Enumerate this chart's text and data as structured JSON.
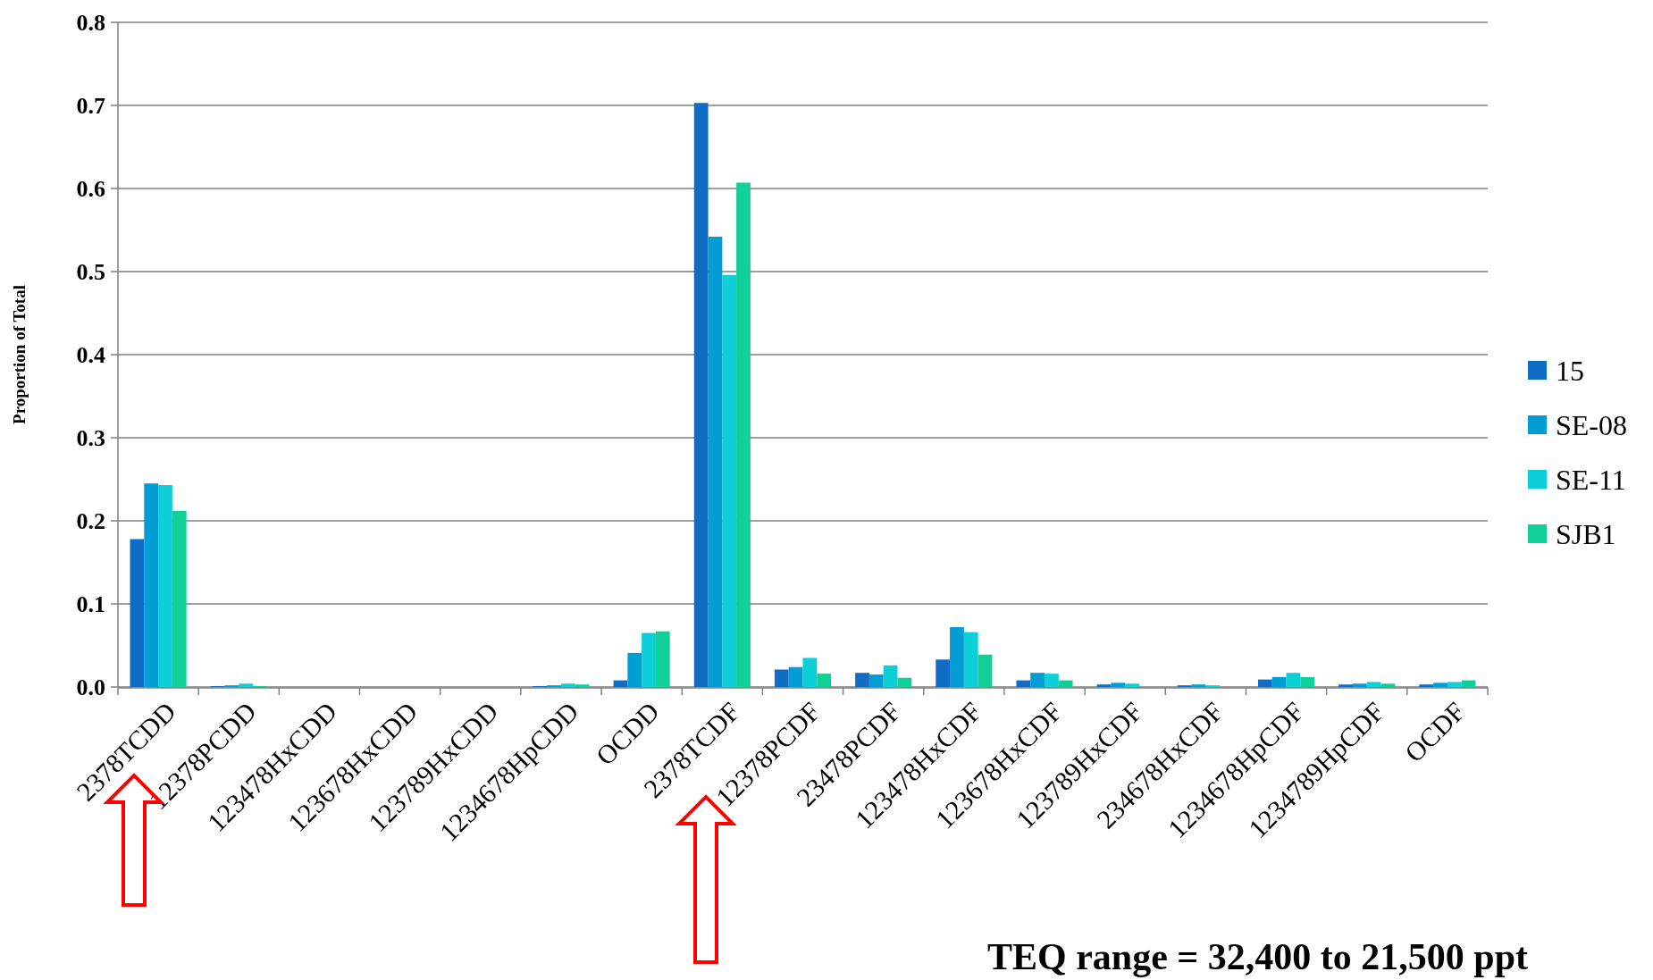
{
  "chart_data": {
    "type": "bar",
    "ylabel": "Proportion of Total",
    "categories": [
      "2378TCDD",
      "12378PCDD",
      "123478HxCDD",
      "123678HxCDD",
      "123789HxCDD",
      "1234678HpCDD",
      "OCDD",
      "2378TCDF",
      "12378PCDF",
      "23478PCDF",
      "123478HxCDF",
      "123678HxCDF",
      "123789HxCDF",
      "234678HxCDF",
      "1234678HpCDF",
      "1234789HpCDF",
      "OCDF"
    ],
    "series": [
      {
        "name": "15",
        "color": "#116dc4",
        "values": [
          0.178,
          0.001,
          0,
          0,
          0,
          0.001,
          0.008,
          0.703,
          0.021,
          0.017,
          0.033,
          0.008,
          0.003,
          0.002,
          0.009,
          0.003,
          0.003
        ]
      },
      {
        "name": "SE-08",
        "color": "#039dd6",
        "values": [
          0.245,
          0.002,
          0,
          0,
          0,
          0.002,
          0.041,
          0.542,
          0.024,
          0.015,
          0.072,
          0.017,
          0.005,
          0.003,
          0.012,
          0.004,
          0.005
        ]
      },
      {
        "name": "SE-11",
        "color": "#0ccfd8",
        "values": [
          0.243,
          0.004,
          0,
          0,
          0,
          0.004,
          0.065,
          0.496,
          0.035,
          0.026,
          0.066,
          0.016,
          0.004,
          0.002,
          0.017,
          0.006,
          0.006
        ]
      },
      {
        "name": "SJB1",
        "color": "#11cf99",
        "values": [
          0.212,
          0.001,
          0,
          0,
          0,
          0.003,
          0.067,
          0.607,
          0.016,
          0.011,
          0.039,
          0.008,
          0,
          0,
          0.012,
          0.004,
          0.008
        ]
      }
    ],
    "ylim": [
      0,
      0.8
    ],
    "yticks": [
      {
        "value": 0,
        "label": "0.0"
      },
      0.1,
      0.2,
      0.3,
      0.4,
      0.5,
      0.6,
      0.7,
      0.8
    ],
    "grid": "y",
    "legend": "right",
    "annotations": [
      "TEQ range = 32,400 to 21,500 ppt"
    ]
  }
}
